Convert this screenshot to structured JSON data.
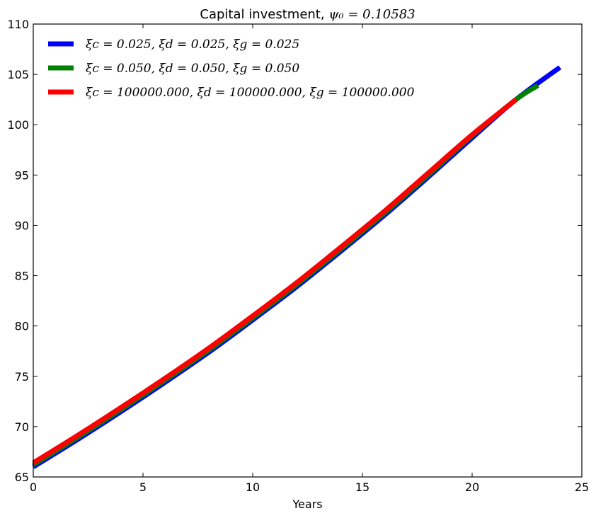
{
  "chart_data": {
    "type": "line",
    "title": "Capital investment, ",
    "title_math": "ψ₀ = 0.10583",
    "xlabel": "Years",
    "ylabel": "",
    "xlim": [
      0,
      25
    ],
    "ylim": [
      65,
      110
    ],
    "xticks": [
      0,
      5,
      10,
      15,
      20,
      25
    ],
    "yticks": [
      65,
      70,
      75,
      80,
      85,
      90,
      95,
      100,
      105,
      110
    ],
    "legend_position": "top-left",
    "grid": false,
    "series": [
      {
        "name": "ξc = 0.025, ξd = 0.025, ξg = 0.025",
        "color": "#0000ff",
        "x": [
          0,
          2,
          4,
          6,
          8,
          10,
          12,
          14,
          16,
          18,
          20,
          22,
          24
        ],
        "y": [
          66.0,
          68.7,
          71.5,
          74.4,
          77.4,
          80.6,
          83.9,
          87.4,
          91.0,
          94.8,
          98.7,
          102.5,
          105.7
        ]
      },
      {
        "name": "ξc = 0.050, ξd = 0.050, ξg = 0.050",
        "color": "#008000",
        "x": [
          0,
          2,
          4,
          6,
          8,
          10,
          12,
          14,
          16,
          18,
          20,
          22,
          23
        ],
        "y": [
          66.2,
          68.9,
          71.7,
          74.6,
          77.6,
          80.8,
          84.1,
          87.6,
          91.2,
          95.0,
          98.9,
          102.5,
          103.9
        ]
      },
      {
        "name": "ξc = 100000.000, ξd = 100000.000, ξg = 100000.000",
        "color": "#ff0000",
        "x": [
          0,
          2,
          4,
          6,
          8,
          10,
          12,
          14,
          16,
          18,
          20,
          22
        ],
        "y": [
          66.4,
          69.1,
          71.9,
          74.8,
          77.8,
          81.0,
          84.3,
          87.8,
          91.4,
          95.2,
          99.0,
          102.5
        ]
      }
    ]
  }
}
